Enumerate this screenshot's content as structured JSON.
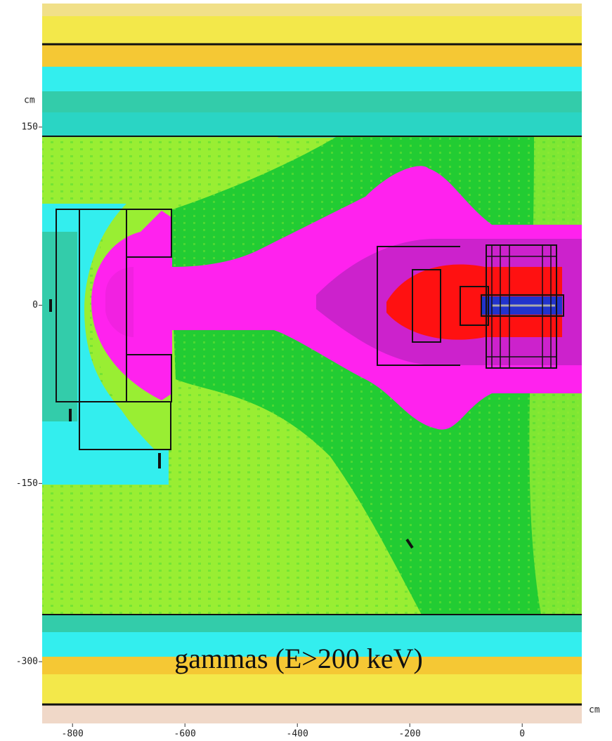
{
  "chart_data": {
    "type": "heatmap",
    "annotation": "gammas (E>200 keV)",
    "x_label": "cm",
    "y_label": "cm",
    "xlim": [
      -854,
      106
    ],
    "ylim": [
      -352,
      254
    ],
    "xticks": [
      -800,
      -600,
      -400,
      -200,
      0
    ],
    "yticks": [
      150,
      0,
      -150,
      -300
    ]
  }
}
